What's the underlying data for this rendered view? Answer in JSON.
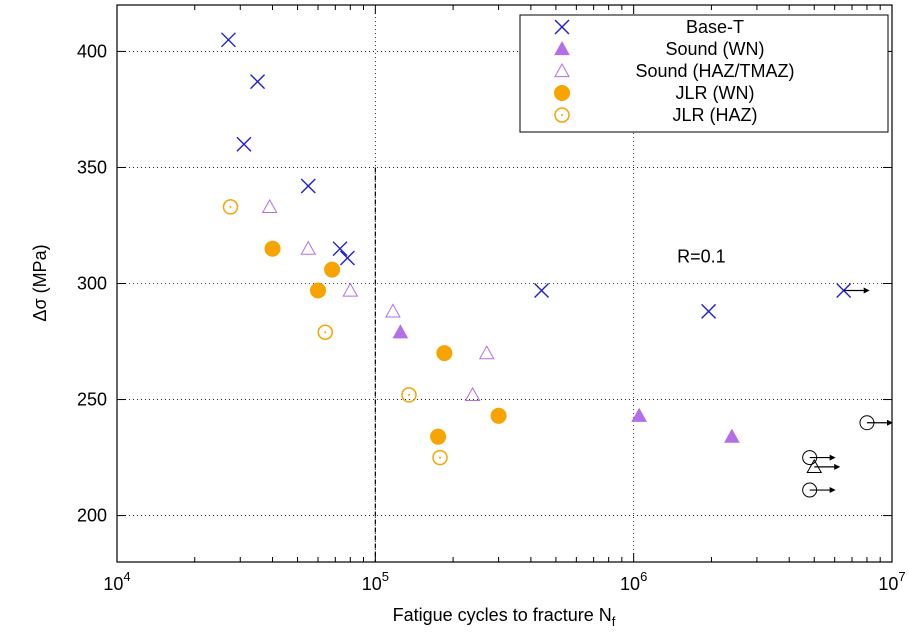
{
  "chart_data": {
    "type": "scatter",
    "title": "",
    "xlabel": "Fatigue cycles to fracture N",
    "xlabel_sub": "f",
    "ylabel": "Δσ (MPa)",
    "xscale": "log",
    "xlim": [
      10000,
      10000000
    ],
    "ylim": [
      180,
      420
    ],
    "x_ticks": [
      {
        "value": 10000,
        "base": "10",
        "exp": "4"
      },
      {
        "value": 100000,
        "base": "10",
        "exp": "5"
      },
      {
        "value": 1000000,
        "base": "10",
        "exp": "6"
      },
      {
        "value": 10000000,
        "base": "10",
        "exp": "7"
      }
    ],
    "y_ticks": [
      200,
      250,
      300,
      350,
      400
    ],
    "grid": true,
    "legend_position": "top-right",
    "vertical_reference_x": 100000,
    "annotation": {
      "text": "R=0.1",
      "x": 1500000,
      "y": 309
    },
    "colors": {
      "blue": "#1f1fd6",
      "purple": "#b46ee8",
      "orange": "#f7a400",
      "black": "#000000"
    },
    "series": [
      {
        "name": "Base-T",
        "marker": "cross",
        "color": "#1f1fd6",
        "points": [
          {
            "x": 27000,
            "y": 405
          },
          {
            "x": 35000,
            "y": 387
          },
          {
            "x": 31000,
            "y": 360
          },
          {
            "x": 55000,
            "y": 342
          },
          {
            "x": 73000,
            "y": 315
          },
          {
            "x": 78000,
            "y": 311
          },
          {
            "x": 440000,
            "y": 297
          },
          {
            "x": 1950000,
            "y": 288
          },
          {
            "x": 6500000,
            "y": 297,
            "runout": true
          }
        ]
      },
      {
        "name": "Sound (WN)",
        "marker": "triangle-filled",
        "color": "#b46ee8",
        "points": [
          {
            "x": 125000,
            "y": 279
          },
          {
            "x": 1050000,
            "y": 243
          },
          {
            "x": 2400000,
            "y": 234
          }
        ]
      },
      {
        "name": "Sound (HAZ/TMAZ)",
        "marker": "triangle-open",
        "color": "#b46ee8",
        "points": [
          {
            "x": 39000,
            "y": 333
          },
          {
            "x": 55000,
            "y": 315
          },
          {
            "x": 80000,
            "y": 297
          },
          {
            "x": 117000,
            "y": 288
          },
          {
            "x": 270000,
            "y": 270
          },
          {
            "x": 238000,
            "y": 252
          }
        ]
      },
      {
        "name": "JLR (WN)",
        "marker": "circle-filled",
        "color": "#f7a400",
        "points": [
          {
            "x": 40000,
            "y": 315
          },
          {
            "x": 68000,
            "y": 306
          },
          {
            "x": 60000,
            "y": 297
          },
          {
            "x": 185000,
            "y": 270
          },
          {
            "x": 300000,
            "y": 243
          },
          {
            "x": 175000,
            "y": 234
          }
        ]
      },
      {
        "name": "JLR (HAZ)",
        "marker": "circle-dot",
        "color": "#f7a400",
        "points": [
          {
            "x": 27500,
            "y": 333
          },
          {
            "x": 64000,
            "y": 279
          },
          {
            "x": 135000,
            "y": 252
          },
          {
            "x": 178000,
            "y": 225
          }
        ]
      }
    ],
    "runouts": [
      {
        "marker": "circle-open",
        "x": 8000000,
        "y": 240
      },
      {
        "marker": "circle-open",
        "x": 4800000,
        "y": 225
      },
      {
        "marker": "triangle-open",
        "x": 5000000,
        "y": 221
      },
      {
        "marker": "circle-open",
        "x": 4800000,
        "y": 211
      }
    ]
  }
}
